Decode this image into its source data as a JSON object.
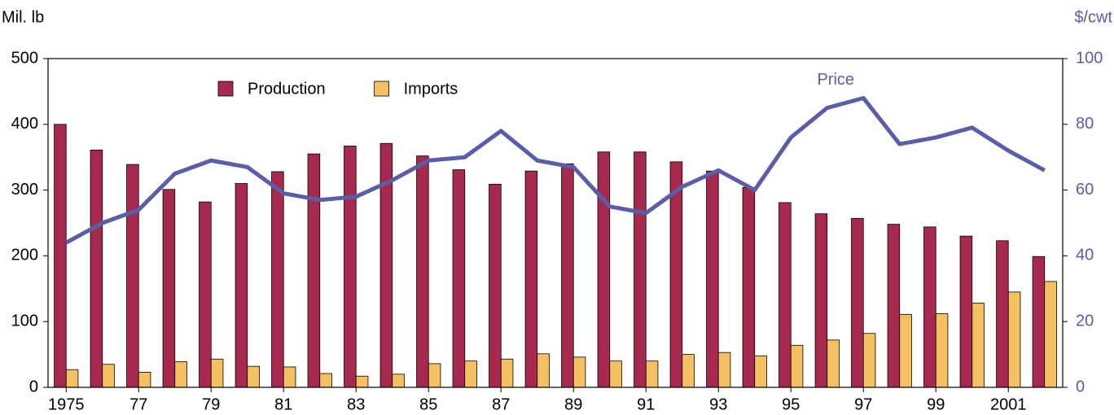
{
  "chart_data": {
    "type": "bar",
    "ylabel": "Mil. lb",
    "y2label": "$/cwt",
    "categories": [
      "1975",
      null,
      "77",
      null,
      "79",
      null,
      "81",
      null,
      "83",
      null,
      "85",
      null,
      "87",
      null,
      "89",
      null,
      "91",
      null,
      "93",
      null,
      "95",
      null,
      "97",
      null,
      "99",
      null,
      "2001",
      null
    ],
    "series": [
      {
        "name": "Production",
        "type": "bar",
        "color": "#a62a50",
        "values": [
          400,
          361,
          339,
          301,
          282,
          310,
          328,
          355,
          367,
          371,
          352,
          331,
          309,
          329,
          340,
          358,
          358,
          343,
          329,
          304,
          281,
          264,
          257,
          248,
          244,
          230,
          223,
          199
        ]
      },
      {
        "name": "Imports",
        "type": "bar",
        "color": "#f5c062",
        "values": [
          27,
          35,
          23,
          39,
          43,
          32,
          31,
          21,
          17,
          20,
          36,
          40,
          43,
          51,
          46,
          40,
          40,
          50,
          53,
          48,
          64,
          72,
          82,
          111,
          112,
          128,
          145,
          161
        ]
      },
      {
        "name": "Price",
        "type": "line",
        "axis": "y2",
        "color": "#5b5ea6",
        "values": [
          44,
          50,
          54,
          65,
          69,
          67,
          59,
          57,
          58,
          63,
          69,
          70,
          78,
          69,
          67,
          55,
          53,
          61,
          66,
          60,
          76,
          85,
          88,
          74,
          76,
          79,
          72,
          66
        ]
      }
    ],
    "ylim": [
      0,
      500
    ],
    "yticks": [
      0,
      100,
      200,
      300,
      400,
      500
    ],
    "y2lim": [
      0,
      100
    ],
    "y2ticks": [
      0,
      20,
      40,
      60,
      80,
      100
    ],
    "legend": "top"
  }
}
